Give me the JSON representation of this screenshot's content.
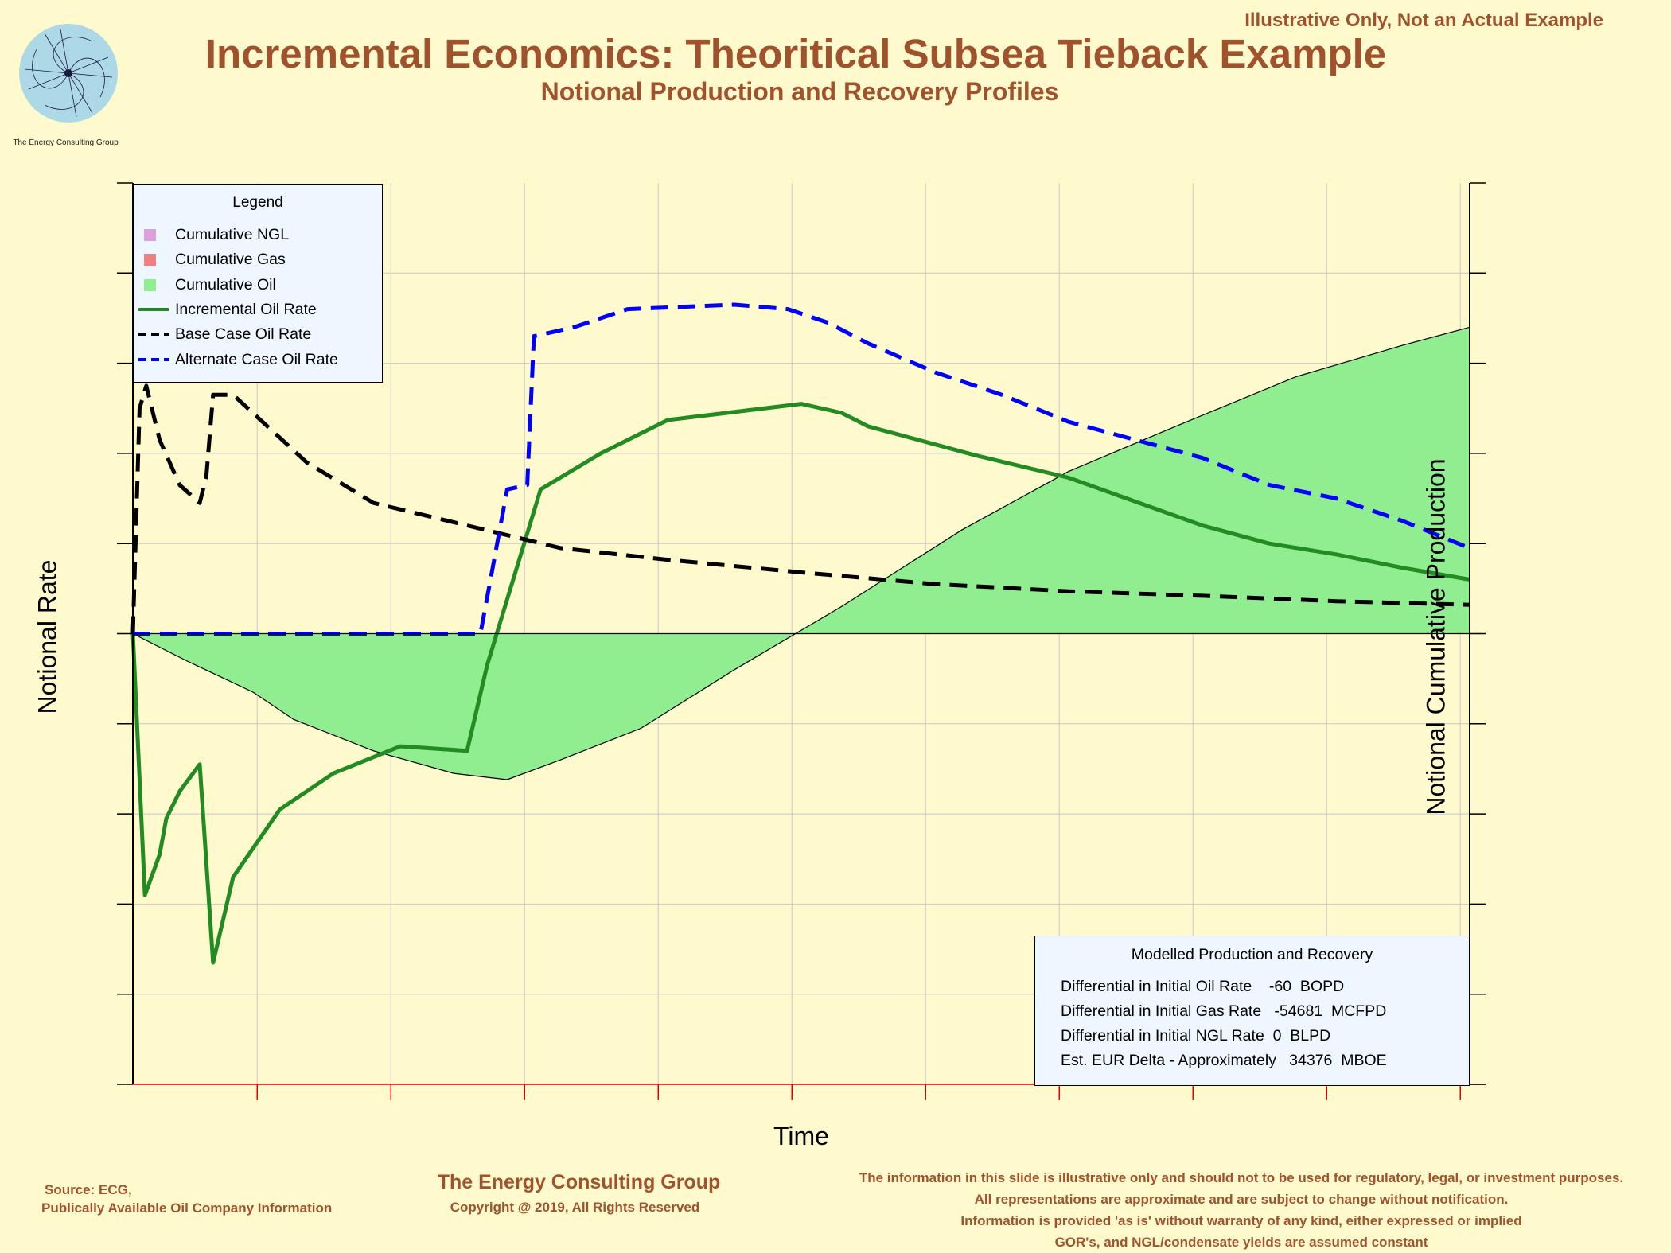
{
  "header": {
    "corner_note": "Illustrative Only, Not an Actual Example",
    "title": "Incremental Economics:  Theoritical Subsea Tieback Example",
    "subtitle": "Notional Production and Recovery Profiles",
    "logo_caption": "The Energy Consulting Group"
  },
  "colors": {
    "background": "#fffacd",
    "brand_text": "#a0522d",
    "cumulative_fill": "#90ee90",
    "incremental": "#228b22",
    "base": "#000000",
    "alternate": "#0000ff",
    "ngl": "#dda0dd",
    "gas": "#f08080"
  },
  "chart_data": {
    "type": "line",
    "title": "",
    "xlabel": "Time",
    "ylabel": "Notional Rate",
    "y2label": "Notional Cumulative Production",
    "xlim": [
      0,
      10
    ],
    "ylim": [
      -5,
      5
    ],
    "y2lim": [
      -5,
      5
    ],
    "grid": true,
    "legend_position": "top-left",
    "legend": {
      "title": "Legend",
      "items": [
        {
          "label": "Cumulative NGL",
          "kind": "swatch",
          "color": "#dda0dd"
        },
        {
          "label": "Cumulative Gas",
          "kind": "swatch",
          "color": "#f08080"
        },
        {
          "label": "Cumulative Oil",
          "kind": "swatch",
          "color": "#90ee90"
        },
        {
          "label": "Incremental Oil Rate",
          "kind": "solid",
          "color": "#228b22"
        },
        {
          "label": "Base Case Oil Rate",
          "kind": "dash",
          "color": "#000000"
        },
        {
          "label": "Alternate Case Oil Rate",
          "kind": "dash",
          "color": "#0000ff"
        }
      ]
    },
    "series": [
      {
        "name": "Cumulative Oil",
        "kind": "area",
        "points": [
          [
            0,
            0
          ],
          [
            0.4,
            -0.3
          ],
          [
            0.9,
            -0.65
          ],
          [
            1.2,
            -0.95
          ],
          [
            1.8,
            -1.3
          ],
          [
            2.4,
            -1.55
          ],
          [
            2.8,
            -1.62
          ],
          [
            3.2,
            -1.4
          ],
          [
            3.8,
            -1.05
          ],
          [
            4.5,
            -0.4
          ],
          [
            5.3,
            0.3
          ],
          [
            6.2,
            1.15
          ],
          [
            7,
            1.8
          ],
          [
            7.8,
            2.3
          ],
          [
            8.7,
            2.85
          ],
          [
            9.5,
            3.2
          ],
          [
            10,
            3.4
          ]
        ]
      },
      {
        "name": "Incremental Oil Rate",
        "kind": "line",
        "points": [
          [
            0,
            0
          ],
          [
            0.09,
            -2.9
          ],
          [
            0.2,
            -2.45
          ],
          [
            0.25,
            -2.05
          ],
          [
            0.35,
            -1.75
          ],
          [
            0.5,
            -1.45
          ],
          [
            0.6,
            -3.65
          ],
          [
            0.75,
            -2.7
          ],
          [
            1.1,
            -1.95
          ],
          [
            1.5,
            -1.55
          ],
          [
            2.0,
            -1.25
          ],
          [
            2.5,
            -1.3
          ],
          [
            2.65,
            -0.35
          ],
          [
            3.05,
            1.6
          ],
          [
            3.5,
            2.0
          ],
          [
            4.0,
            2.37
          ],
          [
            5.0,
            2.55
          ],
          [
            5.3,
            2.45
          ],
          [
            5.5,
            2.3
          ],
          [
            6.3,
            1.98
          ],
          [
            7.0,
            1.73
          ],
          [
            8.0,
            1.2
          ],
          [
            8.5,
            1.0
          ],
          [
            9.0,
            0.88
          ],
          [
            9.5,
            0.73
          ],
          [
            10,
            0.6
          ]
        ]
      },
      {
        "name": "Base Case Oil Rate",
        "kind": "dash",
        "points": [
          [
            0,
            0
          ],
          [
            0.05,
            2.5
          ],
          [
            0.1,
            2.75
          ],
          [
            0.2,
            2.15
          ],
          [
            0.35,
            1.65
          ],
          [
            0.5,
            1.45
          ],
          [
            0.55,
            1.75
          ],
          [
            0.6,
            2.65
          ],
          [
            0.75,
            2.65
          ],
          [
            1.3,
            1.9
          ],
          [
            1.8,
            1.45
          ],
          [
            2.5,
            1.2
          ],
          [
            3.2,
            0.95
          ],
          [
            4.0,
            0.82
          ],
          [
            5.0,
            0.68
          ],
          [
            6.0,
            0.55
          ],
          [
            7.0,
            0.47
          ],
          [
            8.0,
            0.42
          ],
          [
            9.0,
            0.36
          ],
          [
            10,
            0.32
          ]
        ]
      },
      {
        "name": "Alternate Case Oil Rate",
        "kind": "dash",
        "points": [
          [
            0,
            0
          ],
          [
            0.5,
            0
          ],
          [
            1.0,
            0
          ],
          [
            1.5,
            0
          ],
          [
            2.0,
            0
          ],
          [
            2.6,
            0
          ],
          [
            2.8,
            1.6
          ],
          [
            2.95,
            1.65
          ],
          [
            3.0,
            3.3
          ],
          [
            3.3,
            3.4
          ],
          [
            3.7,
            3.6
          ],
          [
            4.5,
            3.65
          ],
          [
            4.9,
            3.6
          ],
          [
            5.2,
            3.45
          ],
          [
            5.5,
            3.22
          ],
          [
            6.0,
            2.9
          ],
          [
            6.5,
            2.65
          ],
          [
            7.0,
            2.35
          ],
          [
            7.5,
            2.15
          ],
          [
            8.0,
            1.95
          ],
          [
            8.5,
            1.65
          ],
          [
            9.0,
            1.5
          ],
          [
            9.5,
            1.25
          ],
          [
            10,
            0.95
          ]
        ]
      }
    ]
  },
  "axis_labels": {
    "x": "Time",
    "y_left": "Notional Rate",
    "y_right": "Notional Cumulative Production"
  },
  "info_box": {
    "title": "Modelled Production and Recovery",
    "lines": [
      "Differential in Initial Oil Rate    -60  BOPD",
      "Differential in Initial Gas Rate   -54681  MCFPD",
      "Differential in Initial NGL Rate  0  BLPD",
      "Est. EUR Delta - Approximately   34376  MBOE"
    ]
  },
  "footer": {
    "source_line1": "Source: ECG,",
    "source_line2": "Publically Available Oil Company Information",
    "company": "The Energy Consulting Group",
    "copyright": "Copyright @ 2019, All Rights Reserved",
    "disclaimer": [
      "The information in this slide is illustrative only and should not to be used for regulatory, legal, or investment purposes.",
      "All representations are approximate and are subject to change without notification.",
      "Information is provided 'as is' without warranty of any kind, either expressed or implied",
      "GOR's, and NGL/condensate yields are assumed constant"
    ]
  }
}
